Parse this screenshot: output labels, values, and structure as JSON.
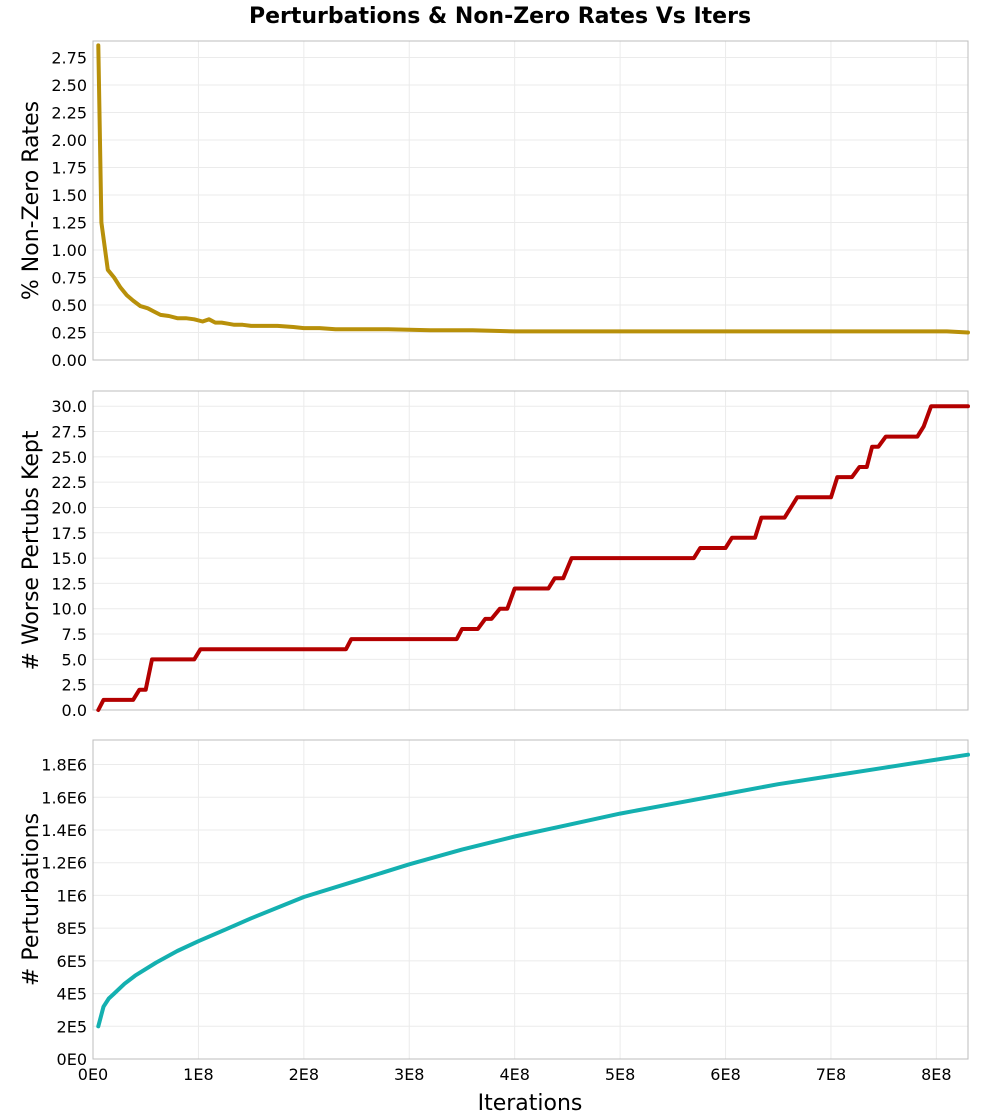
{
  "chart_data": {
    "title": "Perturbations & Non-Zero Rates Vs Iters",
    "xlabel": "Iterations",
    "xlim": [
      0,
      830000000
    ],
    "x_ticks": [
      0,
      100000000,
      200000000,
      300000000,
      400000000,
      500000000,
      600000000,
      700000000,
      800000000
    ],
    "x_tick_labels": [
      "0E0",
      "1E8",
      "2E8",
      "3E8",
      "4E8",
      "5E8",
      "6E8",
      "7E8",
      "8E8"
    ],
    "panels": [
      {
        "type": "line",
        "ylabel": "% Non-Zero Rates",
        "ylim": [
          0,
          2.9
        ],
        "y_ticks": [
          0,
          0.25,
          0.5,
          0.75,
          1.0,
          1.25,
          1.5,
          1.75,
          2.0,
          2.25,
          2.5,
          2.75
        ],
        "y_tick_labels": [
          "0.00",
          "0.25",
          "0.50",
          "0.75",
          "1.00",
          "1.25",
          "1.50",
          "1.75",
          "2.00",
          "2.25",
          "2.50",
          "2.75"
        ],
        "color": "#b8900a",
        "x": [
          5000000,
          8000000,
          14000000,
          20000000,
          26000000,
          32000000,
          38000000,
          45000000,
          52000000,
          58000000,
          64000000,
          72000000,
          80000000,
          88000000,
          96000000,
          104000000,
          110000000,
          116000000,
          122000000,
          128000000,
          134000000,
          142000000,
          150000000,
          160000000,
          175000000,
          190000000,
          200000000,
          215000000,
          230000000,
          250000000,
          280000000,
          320000000,
          360000000,
          400000000,
          450000000,
          500000000,
          560000000,
          620000000,
          680000000,
          720000000,
          780000000,
          810000000,
          830000000
        ],
        "y": [
          2.86,
          1.25,
          0.82,
          0.75,
          0.66,
          0.59,
          0.54,
          0.49,
          0.47,
          0.44,
          0.41,
          0.4,
          0.38,
          0.38,
          0.37,
          0.35,
          0.37,
          0.34,
          0.34,
          0.33,
          0.32,
          0.32,
          0.31,
          0.31,
          0.31,
          0.3,
          0.29,
          0.29,
          0.28,
          0.28,
          0.28,
          0.27,
          0.27,
          0.26,
          0.26,
          0.26,
          0.26,
          0.26,
          0.26,
          0.26,
          0.26,
          0.26,
          0.25
        ]
      },
      {
        "type": "line",
        "ylabel": "# Worse Pertubs Kept",
        "ylim": [
          0,
          31.5
        ],
        "y_ticks": [
          0,
          2.5,
          5,
          7.5,
          10,
          12.5,
          15,
          17.5,
          20,
          22.5,
          25,
          27.5,
          30
        ],
        "y_tick_labels": [
          "0.0",
          "2.5",
          "5.0",
          "7.5",
          "10.0",
          "12.5",
          "15.0",
          "17.5",
          "20.0",
          "22.5",
          "25.0",
          "27.5",
          "30.0"
        ],
        "color": "#b30000",
        "x": [
          5000000,
          10000000,
          38000000,
          44000000,
          50000000,
          56000000,
          62000000,
          96000000,
          102000000,
          140000000,
          240000000,
          245000000,
          345000000,
          350000000,
          365000000,
          372000000,
          378000000,
          386000000,
          393000000,
          400000000,
          407000000,
          432000000,
          438000000,
          446000000,
          454000000,
          570000000,
          576000000,
          600000000,
          606000000,
          628000000,
          634000000,
          656000000,
          662000000,
          668000000,
          700000000,
          706000000,
          720000000,
          727000000,
          734000000,
          739000000,
          745000000,
          752000000,
          757000000,
          782000000,
          788000000,
          795000000,
          830000000
        ],
        "y": [
          0,
          1,
          1,
          2,
          2,
          5,
          5,
          5,
          6,
          6,
          6,
          7,
          7,
          8,
          8,
          9,
          9,
          10,
          10,
          12,
          12,
          12,
          13,
          13,
          15,
          15,
          16,
          16,
          17,
          17,
          19,
          19,
          20,
          21,
          21,
          23,
          23,
          24,
          24,
          26,
          26,
          27,
          27,
          27,
          28,
          30,
          30
        ]
      },
      {
        "type": "line",
        "ylabel": "# Perturbations",
        "ylim": [
          0,
          1950000
        ],
        "y_ticks": [
          0,
          200000,
          400000,
          600000,
          800000,
          1000000,
          1200000,
          1400000,
          1600000,
          1800000
        ],
        "y_tick_labels": [
          "0E0",
          "2E5",
          "4E5",
          "6E5",
          "8E5",
          "1E6",
          "1.2E6",
          "1.4E6",
          "1.6E6",
          "1.8E6"
        ],
        "color": "#14b0b0",
        "x": [
          5000000,
          10000000,
          15000000,
          20000000,
          30000000,
          40000000,
          60000000,
          80000000,
          100000000,
          125000000,
          150000000,
          200000000,
          250000000,
          300000000,
          350000000,
          400000000,
          450000000,
          500000000,
          550000000,
          600000000,
          650000000,
          700000000,
          750000000,
          800000000,
          830000000
        ],
        "y": [
          200000,
          320000,
          370000,
          400000,
          460000,
          510000,
          590000,
          660000,
          720000,
          790000,
          860000,
          990000,
          1090000,
          1190000,
          1280000,
          1360000,
          1430000,
          1500000,
          1560000,
          1620000,
          1680000,
          1730000,
          1780000,
          1830000,
          1860000
        ]
      }
    ]
  }
}
